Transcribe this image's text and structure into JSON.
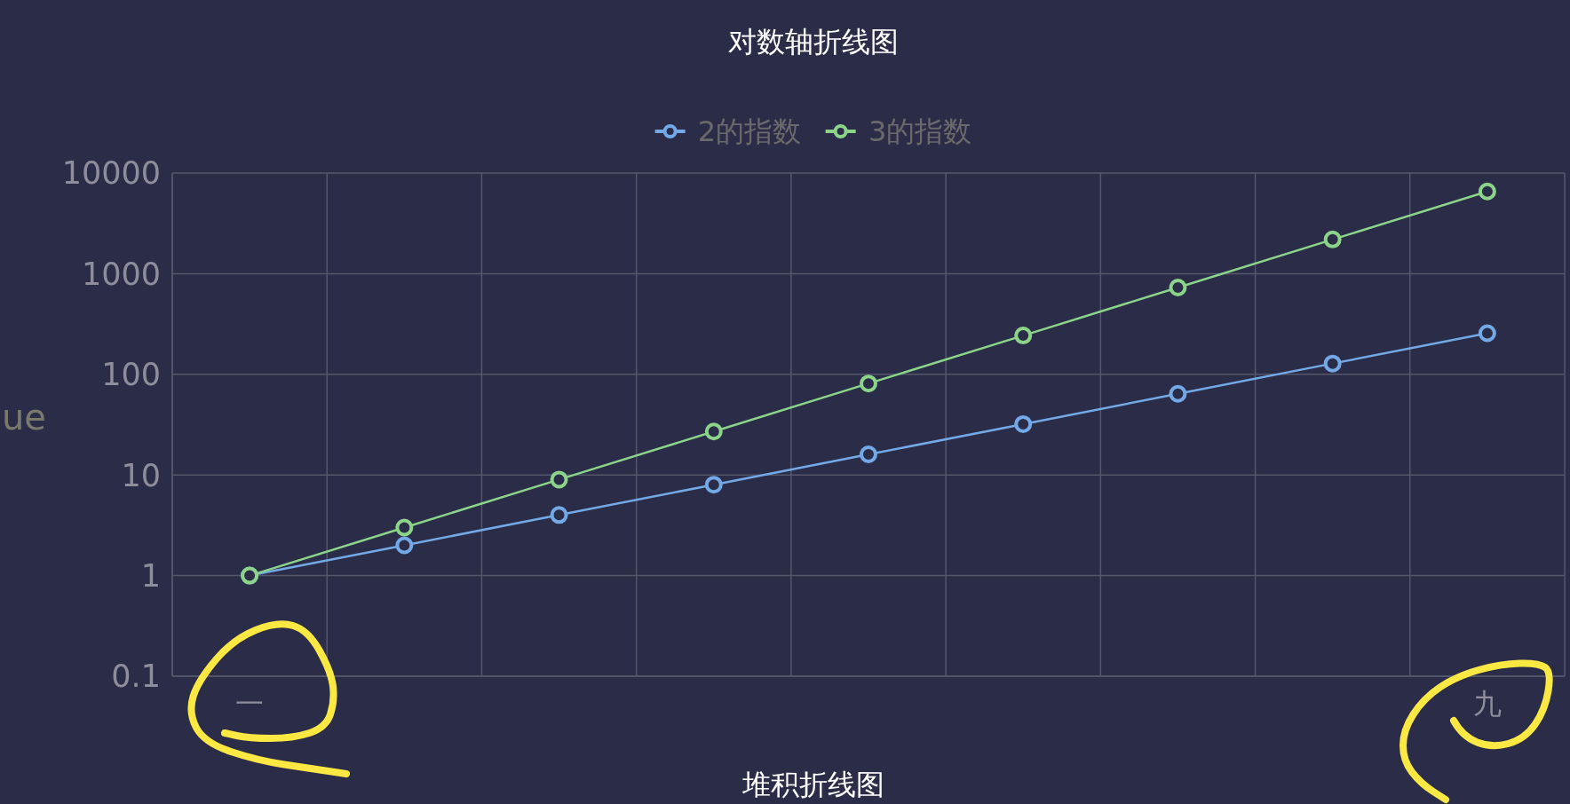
{
  "chart_data": {
    "type": "line",
    "title": "对数轴折线图",
    "ylabel": "ue",
    "annotations": [
      "堆积折线图"
    ],
    "categories": [
      "一",
      null,
      null,
      null,
      null,
      null,
      null,
      null,
      "九"
    ],
    "series": [
      {
        "name": "2的指数",
        "color": "#73a9e6",
        "values": [
          1,
          2,
          4,
          8,
          16,
          32,
          64,
          128,
          256
        ]
      },
      {
        "name": "3的指数",
        "color": "#8bd48a",
        "values": [
          1,
          3,
          9,
          27,
          81,
          243,
          729,
          2187,
          6561
        ]
      }
    ],
    "ylim": [
      0.1,
      10000
    ],
    "yticks": [
      0.1,
      1,
      10,
      100,
      1000,
      10000
    ],
    "log": "y",
    "grid": true,
    "legend": "top",
    "marker": "circle",
    "line_style": "solid"
  }
}
